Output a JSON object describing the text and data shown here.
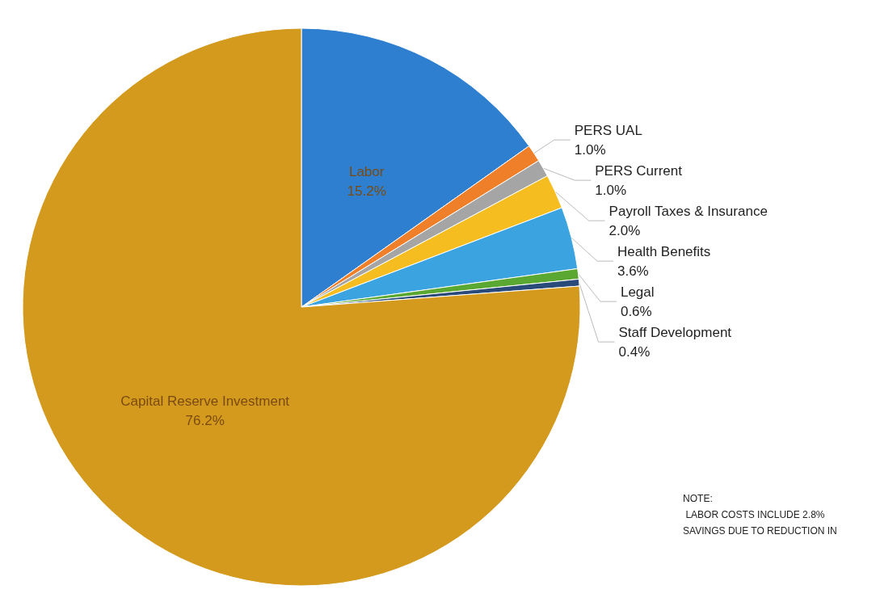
{
  "chart_data": {
    "type": "pie",
    "categories": [
      "Labor",
      "PERS UAL",
      "PERS Current",
      "Payroll Taxes & Insurance",
      "Health Benefits",
      "Legal",
      "Staff Development",
      "Capital Reserve Investment"
    ],
    "values": [
      15.2,
      1.0,
      1.0,
      2.0,
      3.6,
      0.6,
      0.4,
      76.2
    ],
    "value_labels": [
      "15.2%",
      "1.0%",
      "1.0%",
      "2.0%",
      "3.6%",
      "0.6%",
      "0.4%",
      "76.2%"
    ],
    "colors": [
      "#2e7fd0",
      "#f07f2a",
      "#a5a5a5",
      "#f5bd1f",
      "#3aa3e0",
      "#5aa832",
      "#2a4a7a",
      "#d49a1e"
    ],
    "legend": false,
    "annotations": [
      "NOTE:\n LABOR COSTS INCLUDE 2.8%\nSAVINGS DUE TO REDUCTION IN"
    ]
  }
}
